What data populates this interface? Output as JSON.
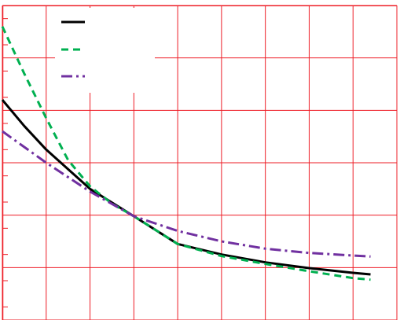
{
  "chart_data": {
    "type": "line",
    "title": "",
    "xlabel": "",
    "ylabel": "",
    "xlim": [
      0,
      9
    ],
    "ylim": [
      0,
      6
    ],
    "grid": true,
    "legend_position": "top-left",
    "colors": {
      "grid": "#ee1c25",
      "axis": "#ee1c25",
      "background": "#ffffff"
    },
    "series": [
      {
        "color": "#000000",
        "dash": "solid",
        "points": [
          [
            0,
            4.2
          ],
          [
            0.5,
            3.7
          ],
          [
            1,
            3.25
          ],
          [
            2,
            2.5
          ],
          [
            3,
            1.98
          ],
          [
            4,
            1.45
          ],
          [
            5,
            1.25
          ],
          [
            6,
            1.1
          ],
          [
            7,
            0.99
          ],
          [
            8,
            0.9
          ],
          [
            8.4,
            0.87
          ]
        ]
      },
      {
        "color": "#00b050",
        "dash": "dashed",
        "points": [
          [
            0,
            5.6
          ],
          [
            0.5,
            4.7
          ],
          [
            1,
            3.85
          ],
          [
            1.5,
            3.05
          ],
          [
            2,
            2.55
          ],
          [
            2.5,
            2.22
          ],
          [
            3,
            1.98
          ],
          [
            4,
            1.45
          ],
          [
            5,
            1.22
          ],
          [
            6,
            1.07
          ],
          [
            7,
            0.93
          ],
          [
            8,
            0.8
          ],
          [
            8.4,
            0.77
          ]
        ]
      },
      {
        "color": "#7030a0",
        "dash": "dashdot",
        "points": [
          [
            0,
            3.6
          ],
          [
            1,
            3.0
          ],
          [
            2,
            2.45
          ],
          [
            3,
            1.98
          ],
          [
            4,
            1.7
          ],
          [
            5,
            1.5
          ],
          [
            6,
            1.36
          ],
          [
            7,
            1.28
          ],
          [
            8,
            1.23
          ],
          [
            8.4,
            1.21
          ]
        ]
      }
    ]
  }
}
